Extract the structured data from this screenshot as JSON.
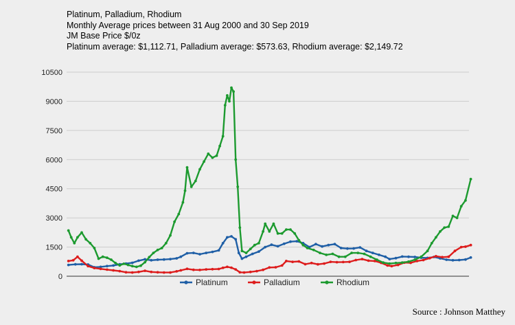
{
  "chart_data": {
    "type": "line",
    "title": "Platinum, Palladium, Rhodium",
    "subtitle_lines": [
      "Monthly Average prices between 31 Aug 2000 and 30 Sep 2019",
      "JM Base Price $/0z",
      "Platinum average: $1,112.71, Palladium average: $573.63, Rhodium average: $2,149.72"
    ],
    "xlabel": "",
    "ylabel": "",
    "x_start": "2000-08",
    "x_end": "2019-09",
    "ylim": [
      0,
      10500
    ],
    "yticks": [
      0,
      1500,
      3000,
      4500,
      6000,
      7500,
      9000,
      10500
    ],
    "ytick_labels": [
      "0",
      "1500",
      "3000",
      "4500",
      "6000",
      "7500",
      "9000",
      "10500"
    ],
    "legend_position": "bottom",
    "series": [
      {
        "name": "Platinum",
        "color": "#1f5fa6",
        "points": [
          [
            2000.67,
            580
          ],
          [
            2001.0,
            610
          ],
          [
            2001.3,
            620
          ],
          [
            2001.6,
            600
          ],
          [
            2001.9,
            460
          ],
          [
            2002.2,
            480
          ],
          [
            2002.5,
            520
          ],
          [
            2002.8,
            550
          ],
          [
            2003.1,
            610
          ],
          [
            2003.4,
            650
          ],
          [
            2003.7,
            690
          ],
          [
            2004.0,
            800
          ],
          [
            2004.3,
            870
          ],
          [
            2004.6,
            820
          ],
          [
            2004.9,
            850
          ],
          [
            2005.2,
            860
          ],
          [
            2005.5,
            880
          ],
          [
            2005.8,
            920
          ],
          [
            2006.0,
            1000
          ],
          [
            2006.3,
            1180
          ],
          [
            2006.6,
            1200
          ],
          [
            2006.9,
            1130
          ],
          [
            2007.2,
            1200
          ],
          [
            2007.5,
            1250
          ],
          [
            2007.8,
            1330
          ],
          [
            2008.0,
            1700
          ],
          [
            2008.2,
            2000
          ],
          [
            2008.4,
            2050
          ],
          [
            2008.6,
            1900
          ],
          [
            2008.75,
            1200
          ],
          [
            2008.9,
            900
          ],
          [
            2009.1,
            1000
          ],
          [
            2009.4,
            1150
          ],
          [
            2009.7,
            1270
          ],
          [
            2010.0,
            1500
          ],
          [
            2010.3,
            1620
          ],
          [
            2010.6,
            1540
          ],
          [
            2010.9,
            1670
          ],
          [
            2011.2,
            1780
          ],
          [
            2011.5,
            1800
          ],
          [
            2011.8,
            1700
          ],
          [
            2012.1,
            1500
          ],
          [
            2012.4,
            1650
          ],
          [
            2012.7,
            1530
          ],
          [
            2013.0,
            1600
          ],
          [
            2013.3,
            1650
          ],
          [
            2013.6,
            1450
          ],
          [
            2013.9,
            1420
          ],
          [
            2014.2,
            1430
          ],
          [
            2014.5,
            1480
          ],
          [
            2014.8,
            1300
          ],
          [
            2015.1,
            1200
          ],
          [
            2015.4,
            1100
          ],
          [
            2015.7,
            1000
          ],
          [
            2015.9,
            880
          ],
          [
            2016.2,
            930
          ],
          [
            2016.5,
            1010
          ],
          [
            2016.8,
            1000
          ],
          [
            2017.1,
            990
          ],
          [
            2017.4,
            950
          ],
          [
            2017.7,
            940
          ],
          [
            2018.0,
            990
          ],
          [
            2018.3,
            920
          ],
          [
            2018.6,
            850
          ],
          [
            2018.9,
            820
          ],
          [
            2019.2,
            830
          ],
          [
            2019.5,
            860
          ],
          [
            2019.75,
            960
          ]
        ]
      },
      {
        "name": "Palladium",
        "color": "#dd1c1c",
        "points": [
          [
            2000.67,
            780
          ],
          [
            2000.9,
            820
          ],
          [
            2001.1,
            1000
          ],
          [
            2001.3,
            800
          ],
          [
            2001.6,
            520
          ],
          [
            2001.9,
            420
          ],
          [
            2002.2,
            380
          ],
          [
            2002.5,
            340
          ],
          [
            2002.8,
            300
          ],
          [
            2003.1,
            260
          ],
          [
            2003.4,
            200
          ],
          [
            2003.7,
            190
          ],
          [
            2004.0,
            220
          ],
          [
            2004.3,
            280
          ],
          [
            2004.6,
            220
          ],
          [
            2004.9,
            200
          ],
          [
            2005.2,
            190
          ],
          [
            2005.5,
            190
          ],
          [
            2005.8,
            250
          ],
          [
            2006.0,
            300
          ],
          [
            2006.3,
            380
          ],
          [
            2006.6,
            330
          ],
          [
            2006.9,
            320
          ],
          [
            2007.2,
            350
          ],
          [
            2007.5,
            360
          ],
          [
            2007.8,
            370
          ],
          [
            2008.0,
            430
          ],
          [
            2008.2,
            480
          ],
          [
            2008.4,
            440
          ],
          [
            2008.6,
            350
          ],
          [
            2008.8,
            200
          ],
          [
            2009.0,
            190
          ],
          [
            2009.3,
            220
          ],
          [
            2009.6,
            260
          ],
          [
            2009.9,
            330
          ],
          [
            2010.2,
            450
          ],
          [
            2010.5,
            460
          ],
          [
            2010.8,
            550
          ],
          [
            2011.0,
            780
          ],
          [
            2011.3,
            740
          ],
          [
            2011.6,
            760
          ],
          [
            2011.9,
            620
          ],
          [
            2012.2,
            680
          ],
          [
            2012.5,
            610
          ],
          [
            2012.8,
            650
          ],
          [
            2013.1,
            740
          ],
          [
            2013.4,
            720
          ],
          [
            2013.7,
            730
          ],
          [
            2014.0,
            740
          ],
          [
            2014.3,
            830
          ],
          [
            2014.6,
            880
          ],
          [
            2014.9,
            800
          ],
          [
            2015.2,
            780
          ],
          [
            2015.5,
            690
          ],
          [
            2015.8,
            550
          ],
          [
            2016.0,
            520
          ],
          [
            2016.3,
            580
          ],
          [
            2016.6,
            700
          ],
          [
            2016.9,
            690
          ],
          [
            2017.2,
            780
          ],
          [
            2017.5,
            830
          ],
          [
            2017.8,
            930
          ],
          [
            2018.1,
            1030
          ],
          [
            2018.4,
            980
          ],
          [
            2018.7,
            1000
          ],
          [
            2019.0,
            1300
          ],
          [
            2019.3,
            1500
          ],
          [
            2019.5,
            1520
          ],
          [
            2019.75,
            1600
          ]
        ]
      },
      {
        "name": "Rhodium",
        "color": "#1c9a2f",
        "points": [
          [
            2000.67,
            2350
          ],
          [
            2000.8,
            2000
          ],
          [
            2000.95,
            1700
          ],
          [
            2001.1,
            2000
          ],
          [
            2001.3,
            2250
          ],
          [
            2001.5,
            1900
          ],
          [
            2001.7,
            1700
          ],
          [
            2001.9,
            1450
          ],
          [
            2002.1,
            900
          ],
          [
            2002.3,
            1000
          ],
          [
            2002.5,
            950
          ],
          [
            2002.7,
            850
          ],
          [
            2002.9,
            680
          ],
          [
            2003.1,
            560
          ],
          [
            2003.3,
            640
          ],
          [
            2003.5,
            580
          ],
          [
            2003.7,
            520
          ],
          [
            2003.9,
            480
          ],
          [
            2004.1,
            540
          ],
          [
            2004.3,
            720
          ],
          [
            2004.5,
            980
          ],
          [
            2004.7,
            1200
          ],
          [
            2004.9,
            1350
          ],
          [
            2005.1,
            1450
          ],
          [
            2005.3,
            1700
          ],
          [
            2005.5,
            2100
          ],
          [
            2005.7,
            2800
          ],
          [
            2005.9,
            3200
          ],
          [
            2006.1,
            3800
          ],
          [
            2006.2,
            4400
          ],
          [
            2006.3,
            5600
          ],
          [
            2006.5,
            4600
          ],
          [
            2006.7,
            4900
          ],
          [
            2006.9,
            5500
          ],
          [
            2007.1,
            5900
          ],
          [
            2007.3,
            6300
          ],
          [
            2007.5,
            6100
          ],
          [
            2007.7,
            6200
          ],
          [
            2007.85,
            6700
          ],
          [
            2008.0,
            7200
          ],
          [
            2008.1,
            8800
          ],
          [
            2008.2,
            9300
          ],
          [
            2008.3,
            9000
          ],
          [
            2008.4,
            9700
          ],
          [
            2008.5,
            9500
          ],
          [
            2008.6,
            6000
          ],
          [
            2008.7,
            4600
          ],
          [
            2008.8,
            2500
          ],
          [
            2008.9,
            1300
          ],
          [
            2009.1,
            1200
          ],
          [
            2009.3,
            1400
          ],
          [
            2009.5,
            1600
          ],
          [
            2009.7,
            1700
          ],
          [
            2009.9,
            2300
          ],
          [
            2010.0,
            2700
          ],
          [
            2010.2,
            2300
          ],
          [
            2010.4,
            2700
          ],
          [
            2010.6,
            2200
          ],
          [
            2010.8,
            2200
          ],
          [
            2011.0,
            2400
          ],
          [
            2011.2,
            2400
          ],
          [
            2011.4,
            2200
          ],
          [
            2011.6,
            1850
          ],
          [
            2011.8,
            1600
          ],
          [
            2012.0,
            1450
          ],
          [
            2012.3,
            1350
          ],
          [
            2012.6,
            1200
          ],
          [
            2012.9,
            1100
          ],
          [
            2013.2,
            1150
          ],
          [
            2013.5,
            1000
          ],
          [
            2013.8,
            1000
          ],
          [
            2014.1,
            1200
          ],
          [
            2014.4,
            1200
          ],
          [
            2014.7,
            1150
          ],
          [
            2015.0,
            1000
          ],
          [
            2015.3,
            850
          ],
          [
            2015.6,
            700
          ],
          [
            2015.9,
            650
          ],
          [
            2016.2,
            680
          ],
          [
            2016.5,
            700
          ],
          [
            2016.8,
            750
          ],
          [
            2017.1,
            850
          ],
          [
            2017.4,
            1000
          ],
          [
            2017.7,
            1300
          ],
          [
            2017.9,
            1700
          ],
          [
            2018.1,
            2000
          ],
          [
            2018.3,
            2300
          ],
          [
            2018.5,
            2500
          ],
          [
            2018.7,
            2550
          ],
          [
            2018.9,
            3100
          ],
          [
            2019.1,
            3000
          ],
          [
            2019.3,
            3600
          ],
          [
            2019.5,
            3900
          ],
          [
            2019.75,
            5000
          ]
        ]
      }
    ]
  },
  "source": "Source : Johnson Matthey"
}
